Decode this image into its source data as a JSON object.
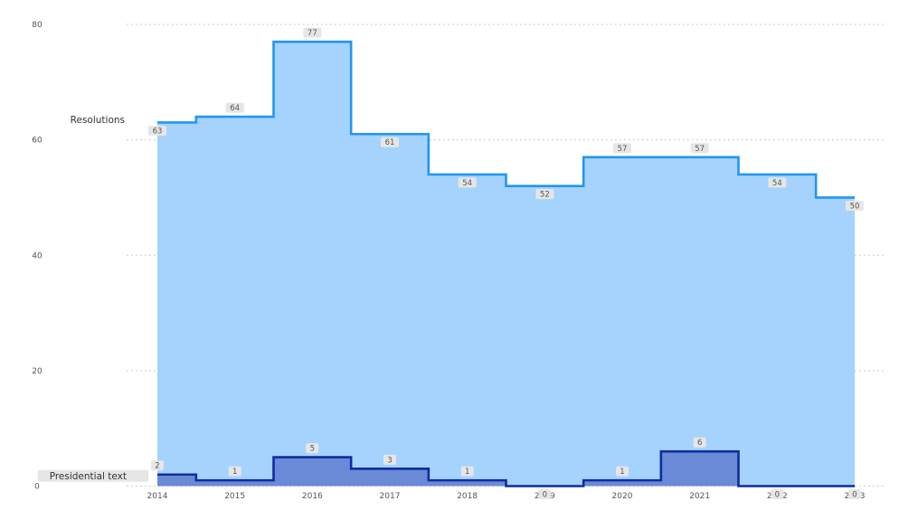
{
  "chart_data": {
    "type": "area",
    "step": true,
    "x": [
      "2014",
      "2015",
      "2016",
      "2017",
      "2018",
      "2019",
      "2020",
      "2021",
      "2022",
      "2023"
    ],
    "ylim": [
      0,
      80
    ],
    "yticks": [
      "0",
      "20",
      "40",
      "60",
      "80"
    ],
    "grid": true,
    "series": [
      {
        "name": "Resolutions",
        "values": [
          63,
          64,
          77,
          61,
          54,
          52,
          57,
          57,
          54,
          50
        ],
        "line_color": "#2196F3",
        "fill_color": "#A5D3FD"
      },
      {
        "name": "Presidential text",
        "values": [
          2,
          1,
          5,
          3,
          1,
          0,
          1,
          6,
          0,
          0
        ],
        "line_color": "#102C9E",
        "fill_color": "#6A8AD8"
      }
    ],
    "data_label_bg": "#E6E6E6"
  }
}
